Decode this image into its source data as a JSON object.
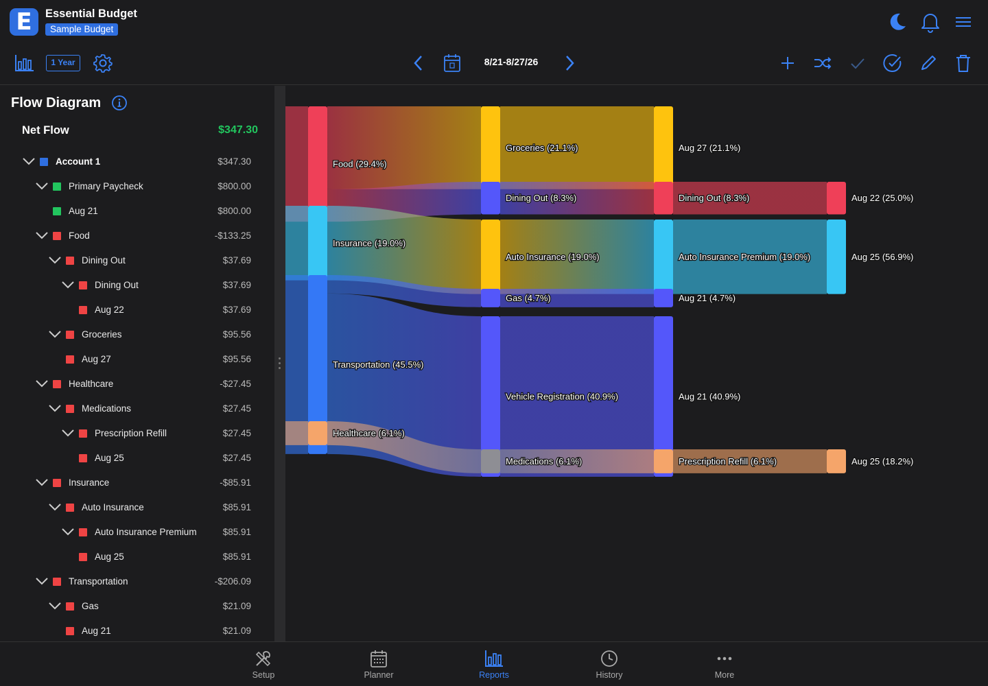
{
  "app": {
    "title": "Essential Budget",
    "budget_name": "Sample Budget",
    "logo_letter": "E"
  },
  "toolbar": {
    "period_label": "1 Year",
    "date_range": "8/21-8/27/26",
    "icons": [
      "chart-icon",
      "settings-icon",
      "prev-icon",
      "calendar-icon",
      "next-icon",
      "add-icon",
      "shuffle-icon",
      "check-icon",
      "check-circle-icon",
      "pencil-icon",
      "trash-icon",
      "moon-icon",
      "bell-icon",
      "menu-icon"
    ]
  },
  "panel": {
    "title": "Flow Diagram",
    "net_flow_label": "Net Flow",
    "net_flow_value": "$347.30",
    "rows": [
      {
        "label": "Account 1",
        "value": "$347.30",
        "level": 0,
        "color": "#2f6fe0",
        "expanded": true,
        "bold": true
      },
      {
        "label": "Primary Paycheck",
        "value": "$800.00",
        "level": 1,
        "color": "#22c55e",
        "expanded": true
      },
      {
        "label": "Aug 21",
        "value": "$800.00",
        "level": 2,
        "color": "#22c55e",
        "expanded": false
      },
      {
        "label": "Food",
        "value": "-$133.25",
        "level": 1,
        "color": "#ef4444",
        "expanded": true
      },
      {
        "label": "Dining Out",
        "value": "$37.69",
        "level": 2,
        "color": "#ef4444",
        "expanded": true
      },
      {
        "label": "Dining Out",
        "value": "$37.69",
        "level": 3,
        "color": "#ef4444",
        "expanded": true
      },
      {
        "label": "Aug 22",
        "value": "$37.69",
        "level": 4,
        "color": "#ef4444",
        "expanded": false
      },
      {
        "label": "Groceries",
        "value": "$95.56",
        "level": 2,
        "color": "#ef4444",
        "expanded": true
      },
      {
        "label": "Aug 27",
        "value": "$95.56",
        "level": 3,
        "color": "#ef4444",
        "expanded": false
      },
      {
        "label": "Healthcare",
        "value": "-$27.45",
        "level": 1,
        "color": "#ef4444",
        "expanded": true
      },
      {
        "label": "Medications",
        "value": "$27.45",
        "level": 2,
        "color": "#ef4444",
        "expanded": true
      },
      {
        "label": "Prescription Refill",
        "value": "$27.45",
        "level": 3,
        "color": "#ef4444",
        "expanded": true
      },
      {
        "label": "Aug 25",
        "value": "$27.45",
        "level": 4,
        "color": "#ef4444",
        "expanded": false
      },
      {
        "label": "Insurance",
        "value": "-$85.91",
        "level": 1,
        "color": "#ef4444",
        "expanded": true
      },
      {
        "label": "Auto Insurance",
        "value": "$85.91",
        "level": 2,
        "color": "#ef4444",
        "expanded": true
      },
      {
        "label": "Auto Insurance Premium",
        "value": "$85.91",
        "level": 3,
        "color": "#ef4444",
        "expanded": true
      },
      {
        "label": "Aug 25",
        "value": "$85.91",
        "level": 4,
        "color": "#ef4444",
        "expanded": false
      },
      {
        "label": "Transportation",
        "value": "-$206.09",
        "level": 1,
        "color": "#ef4444",
        "expanded": true
      },
      {
        "label": "Gas",
        "value": "$21.09",
        "level": 2,
        "color": "#ef4444",
        "expanded": true
      },
      {
        "label": "Aug 21",
        "value": "$21.09",
        "level": 3,
        "color": "#ef4444",
        "expanded": false
      }
    ]
  },
  "flow": {
    "nodes": [
      {
        "id": "food",
        "label": "Food (29.4%)",
        "column": 0,
        "color": "#ef4058"
      },
      {
        "id": "insurance",
        "label": "Insurance (19.0%)",
        "column": 0,
        "color": "#38c6f4"
      },
      {
        "id": "transportation",
        "label": "Transportation (45.5%)",
        "column": 0,
        "color": "#3478f6"
      },
      {
        "id": "healthcare",
        "label": "Healthcare (6.1%)",
        "column": 0,
        "color": "#f5a56a"
      },
      {
        "id": "groceries",
        "label": "Groceries (21.1%)",
        "column": 1,
        "color": "#fec30e"
      },
      {
        "id": "diningout1",
        "label": "Dining Out (8.3%)",
        "column": 1,
        "color": "#5457fa"
      },
      {
        "id": "autoins",
        "label": "Auto Insurance (19.0%)",
        "column": 1,
        "color": "#fec30e"
      },
      {
        "id": "gas",
        "label": "Gas (4.7%)",
        "column": 1,
        "color": "#5457fa"
      },
      {
        "id": "vehreg",
        "label": "Vehicle Registration (40.9%)",
        "column": 1,
        "color": "#5457fa"
      },
      {
        "id": "meds",
        "label": "Medications (6.1%)",
        "column": 1,
        "color": "#8e8e94"
      },
      {
        "id": "aug27",
        "label": "Aug 27 (21.1%)",
        "column": 2,
        "color": "#fec30e"
      },
      {
        "id": "diningout2",
        "label": "Dining Out (8.3%)",
        "column": 2,
        "color": "#ef4058"
      },
      {
        "id": "autoprem",
        "label": "Auto Insurance Premium (19.0%)",
        "column": 2,
        "color": "#38c6f4"
      },
      {
        "id": "aug21gas",
        "label": "Aug 21 (4.7%)",
        "column": 2,
        "color": "#5457fa"
      },
      {
        "id": "aug21veh",
        "label": "Aug 21 (40.9%)",
        "column": 2,
        "color": "#5457fa"
      },
      {
        "id": "rxrefill",
        "label": "Prescription Refill (6.1%)",
        "column": 2,
        "color": "#f5a56a"
      },
      {
        "id": "aug22",
        "label": "Aug 22 (25.0%)",
        "column": 3,
        "color": "#ef4058"
      },
      {
        "id": "aug25ins",
        "label": "Aug 25 (56.9%)",
        "column": 3,
        "color": "#38c6f4"
      },
      {
        "id": "aug25hc",
        "label": "Aug 25 (18.2%)",
        "column": 3,
        "color": "#f5a56a"
      }
    ],
    "links": [
      {
        "from": "food",
        "to": "groceries",
        "value": 21.1
      },
      {
        "from": "food",
        "to": "diningout1",
        "value": 8.3
      },
      {
        "from": "insurance",
        "to": "autoins",
        "value": 19.0
      },
      {
        "from": "transportation",
        "to": "gas",
        "value": 4.7
      },
      {
        "from": "transportation",
        "to": "vehreg",
        "value": 40.9
      },
      {
        "from": "healthcare",
        "to": "meds",
        "value": 6.1
      },
      {
        "from": "groceries",
        "to": "aug27",
        "value": 21.1
      },
      {
        "from": "diningout1",
        "to": "diningout2",
        "value": 8.3
      },
      {
        "from": "autoins",
        "to": "autoprem",
        "value": 19.0
      },
      {
        "from": "gas",
        "to": "aug21gas",
        "value": 4.7
      },
      {
        "from": "vehreg",
        "to": "aug21veh",
        "value": 40.9
      },
      {
        "from": "meds",
        "to": "rxrefill",
        "value": 6.1
      },
      {
        "from": "diningout2",
        "to": "aug22",
        "value": 8.3
      },
      {
        "from": "autoprem",
        "to": "aug25ins",
        "value": 19.0
      },
      {
        "from": "rxrefill",
        "to": "aug25hc",
        "value": 6.1
      }
    ]
  },
  "tabs": [
    {
      "label": "Setup",
      "icon": "tools-icon",
      "active": false
    },
    {
      "label": "Planner",
      "icon": "calendar-grid-icon",
      "active": false
    },
    {
      "label": "Reports",
      "icon": "chart-icon",
      "active": true
    },
    {
      "label": "History",
      "icon": "clock-icon",
      "active": false
    },
    {
      "label": "More",
      "icon": "more-icon",
      "active": false
    }
  ],
  "colors": {
    "accent": "#3b82f6",
    "positive": "#22c55e",
    "negative": "#ef4444",
    "background": "#1c1c1e"
  }
}
